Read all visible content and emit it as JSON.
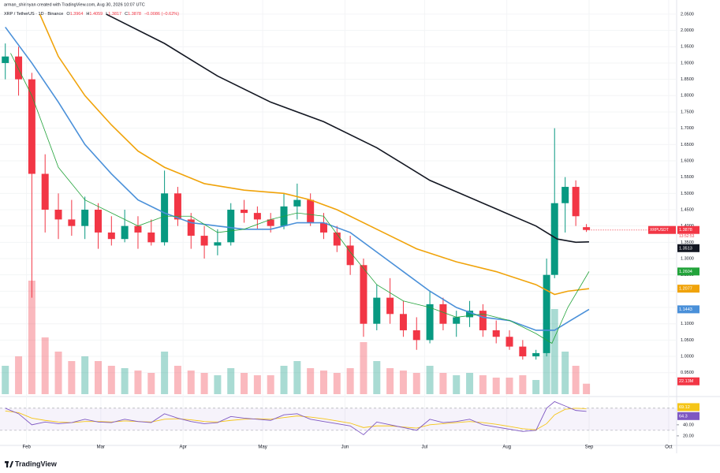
{
  "chart_data": {
    "type": "candlestick",
    "author_line": "arman_shirinyan created with TradingView.com, Aug 30, 2026 10:07 UTC",
    "symbol_line": "XRP / TetherUS · 1D · Binance",
    "ohlc_labels": [
      "O",
      "H",
      "L",
      "C"
    ],
    "change": "−0.0086 (−0.62%)",
    "symbol_tag": "XRPUSDT",
    "countdown": "13:52:53",
    "brand": "TradingView",
    "up_color": "#089981",
    "down_color": "#f23645",
    "x": [
      0,
      5,
      10,
      15,
      20,
      25,
      30,
      35,
      40,
      45,
      50,
      55,
      60,
      65,
      70,
      75,
      80,
      85,
      90,
      95,
      100,
      105,
      110,
      115,
      120,
      125,
      130,
      135,
      140,
      145,
      150,
      155,
      160,
      165,
      170,
      175,
      180,
      185,
      190,
      195,
      200,
      204,
      207,
      211,
      215,
      219
    ],
    "open": [
      1.9,
      1.92,
      1.85,
      1.56,
      1.45,
      1.42,
      1.4,
      1.45,
      1.38,
      1.36,
      1.4,
      1.38,
      1.35,
      1.5,
      1.42,
      1.37,
      1.34,
      1.35,
      1.45,
      1.44,
      1.42,
      1.4,
      1.46,
      1.48,
      1.41,
      1.38,
      1.34,
      1.28,
      1.1,
      1.18,
      1.13,
      1.08,
      1.05,
      1.16,
      1.1,
      1.12,
      1.14,
      1.08,
      1.06,
      1.03,
      1.0,
      1.01,
      1.25,
      1.47,
      1.52,
      1.3964
    ],
    "high": [
      1.96,
      1.95,
      1.87,
      1.62,
      1.5,
      1.48,
      1.49,
      1.47,
      1.43,
      1.45,
      1.43,
      1.42,
      1.57,
      1.52,
      1.44,
      1.4,
      1.39,
      1.47,
      1.48,
      1.46,
      1.44,
      1.5,
      1.53,
      1.5,
      1.44,
      1.4,
      1.37,
      1.3,
      1.22,
      1.24,
      1.17,
      1.12,
      1.2,
      1.18,
      1.14,
      1.17,
      1.16,
      1.11,
      1.08,
      1.05,
      1.02,
      1.3,
      1.7,
      1.55,
      1.54,
      1.4059
    ],
    "low": [
      1.85,
      1.8,
      1.18,
      1.38,
      1.36,
      1.37,
      1.36,
      1.33,
      1.34,
      1.35,
      1.33,
      1.34,
      1.34,
      1.4,
      1.33,
      1.3,
      1.31,
      1.34,
      1.41,
      1.39,
      1.38,
      1.39,
      1.42,
      1.4,
      1.36,
      1.32,
      1.25,
      1.06,
      1.08,
      1.1,
      1.06,
      1.02,
      1.04,
      1.08,
      1.06,
      1.09,
      1.06,
      1.04,
      1.02,
      0.99,
      0.99,
      1.0,
      1.24,
      1.38,
      1.4,
      1.3817
    ],
    "close": [
      1.92,
      1.85,
      1.56,
      1.45,
      1.42,
      1.4,
      1.45,
      1.38,
      1.36,
      1.4,
      1.38,
      1.35,
      1.5,
      1.42,
      1.37,
      1.34,
      1.35,
      1.45,
      1.44,
      1.42,
      1.4,
      1.46,
      1.48,
      1.41,
      1.38,
      1.34,
      1.28,
      1.1,
      1.18,
      1.13,
      1.08,
      1.05,
      1.16,
      1.1,
      1.12,
      1.14,
      1.08,
      1.06,
      1.03,
      1.0,
      1.01,
      1.25,
      1.47,
      1.52,
      1.43,
      1.3878
    ],
    "volume": {
      "values": [
        60,
        80,
        240,
        120,
        90,
        70,
        80,
        70,
        60,
        55,
        50,
        45,
        90,
        60,
        50,
        45,
        40,
        55,
        45,
        40,
        40,
        60,
        70,
        55,
        50,
        45,
        55,
        110,
        70,
        55,
        50,
        45,
        60,
        45,
        40,
        45,
        40,
        35,
        35,
        40,
        30,
        150,
        180,
        90,
        60,
        22.13
      ],
      "value_labels": [
        null,
        null,
        null,
        null,
        null,
        null,
        null,
        null,
        null,
        null,
        null,
        null,
        null,
        null,
        null,
        null,
        null,
        null,
        null,
        null,
        null,
        null,
        null,
        null,
        null,
        null,
        null,
        null,
        null,
        null,
        null,
        null,
        null,
        null,
        null,
        null,
        null,
        null,
        null,
        null,
        null,
        null,
        null,
        null,
        null,
        "22.13M"
      ],
      "ylim": [
        0,
        400
      ]
    },
    "moving_averages": [
      {
        "color": "#131722",
        "x": [
          38,
          60,
          80,
          100,
          120,
          140,
          160,
          180,
          200,
          208,
          215,
          220
        ],
        "values": [
          2.05,
          1.96,
          1.86,
          1.78,
          1.72,
          1.64,
          1.54,
          1.47,
          1.4,
          1.36,
          1.35,
          1.3513
        ]
      },
      {
        "color": "#f0a30a",
        "x": [
          13,
          20,
          30,
          40,
          50,
          60,
          75,
          90,
          105,
          115,
          125,
          140,
          155,
          170,
          185,
          200,
          207,
          212,
          220
        ],
        "values": [
          2.05,
          1.92,
          1.8,
          1.71,
          1.63,
          1.58,
          1.53,
          1.51,
          1.5,
          1.48,
          1.45,
          1.39,
          1.33,
          1.29,
          1.26,
          1.22,
          1.19,
          1.2,
          1.2077
        ]
      },
      {
        "color": "#4a90d9",
        "x": [
          0,
          10,
          20,
          30,
          40,
          50,
          60,
          70,
          80,
          90,
          100,
          110,
          120,
          130,
          140,
          150,
          160,
          170,
          180,
          190,
          200,
          207,
          213,
          220
        ],
        "values": [
          2.01,
          1.9,
          1.78,
          1.65,
          1.56,
          1.48,
          1.44,
          1.41,
          1.4,
          1.39,
          1.39,
          1.41,
          1.41,
          1.38,
          1.32,
          1.26,
          1.2,
          1.15,
          1.12,
          1.11,
          1.08,
          1.08,
          1.11,
          1.1443
        ]
      },
      {
        "color": "#22a33a",
        "x": [
          2,
          10,
          20,
          30,
          40,
          50,
          60,
          70,
          80,
          90,
          100,
          110,
          120,
          130,
          140,
          150,
          160,
          170,
          180,
          190,
          200,
          206,
          212,
          220
        ],
        "values": [
          1.93,
          1.8,
          1.58,
          1.48,
          1.44,
          1.4,
          1.43,
          1.43,
          1.38,
          1.39,
          1.42,
          1.44,
          1.43,
          1.32,
          1.22,
          1.17,
          1.15,
          1.12,
          1.13,
          1.11,
          1.07,
          1.04,
          1.15,
          1.2604
        ]
      }
    ],
    "xlim": [
      -2,
      253
    ],
    "xticks": [
      {
        "value": 8,
        "label": "Feb"
      },
      {
        "value": 36,
        "label": "Mar"
      },
      {
        "value": 67,
        "label": "Apr"
      },
      {
        "value": 97,
        "label": "May"
      },
      {
        "value": 128,
        "label": "Jun"
      },
      {
        "value": 158,
        "label": "Jul"
      },
      {
        "value": 189,
        "label": "Aug"
      },
      {
        "value": 220,
        "label": "Sep"
      },
      {
        "value": 250,
        "label": "Oct"
      }
    ],
    "ylim": [
      0.884,
      2.074
    ],
    "yticks": [
      {
        "value": 0.95,
        "label": "0.9500"
      },
      {
        "value": 1.0,
        "label": "1.0000"
      },
      {
        "value": 1.05,
        "label": "1.0500"
      },
      {
        "value": 1.1,
        "label": "1.1000"
      },
      {
        "value": 1.15,
        "label": "1.1500"
      },
      {
        "value": 1.2,
        "label": "1.2000"
      },
      {
        "value": 1.25,
        "label": "1.2500"
      },
      {
        "value": 1.3,
        "label": "1.3000"
      },
      {
        "value": 1.35,
        "label": "1.3500"
      },
      {
        "value": 1.4,
        "label": "1.4000"
      },
      {
        "value": 1.45,
        "label": "1.4500"
      },
      {
        "value": 1.5,
        "label": "1.5000"
      },
      {
        "value": 1.55,
        "label": "1.5500"
      },
      {
        "value": 1.6,
        "label": "1.6000"
      },
      {
        "value": 1.65,
        "label": "1.6500"
      },
      {
        "value": 1.7,
        "label": "1.7000"
      },
      {
        "value": 1.75,
        "label": "1.7500"
      },
      {
        "value": 1.8,
        "label": "1.8000"
      },
      {
        "value": 1.85,
        "label": "1.8500"
      },
      {
        "value": 1.9,
        "label": "1.9000"
      },
      {
        "value": 1.95,
        "label": "1.9500"
      },
      {
        "value": 2.0,
        "label": "2.0000"
      },
      {
        "value": 2.05,
        "label": "2.0500"
      }
    ],
    "rsi": {
      "color": "#7e57c2",
      "ma_color": "#f5c518",
      "ylim": [
        7,
        84
      ],
      "bands": [
        30,
        70
      ],
      "values": [
        70,
        60,
        40,
        45,
        42,
        44,
        50,
        45,
        44,
        50,
        46,
        44,
        60,
        52,
        46,
        42,
        44,
        55,
        52,
        50,
        48,
        58,
        60,
        50,
        46,
        42,
        38,
        22,
        45,
        40,
        35,
        30,
        50,
        44,
        46,
        50,
        40,
        36,
        32,
        28,
        30,
        70,
        82,
        74,
        66,
        64.3
      ],
      "ma_values": [
        65,
        62,
        52,
        48,
        45,
        44,
        46,
        46,
        45,
        47,
        46,
        45,
        50,
        51,
        49,
        46,
        45,
        48,
        50,
        51,
        50,
        53,
        56,
        54,
        51,
        47,
        43,
        35,
        38,
        38,
        36,
        34,
        40,
        42,
        44,
        46,
        44,
        41,
        37,
        33,
        31,
        42,
        58,
        68,
        70,
        69.12
      ],
      "yticks": [
        {
          "value": 40,
          "label": "40.00"
        },
        {
          "value": 20,
          "label": "20.00"
        }
      ]
    }
  }
}
